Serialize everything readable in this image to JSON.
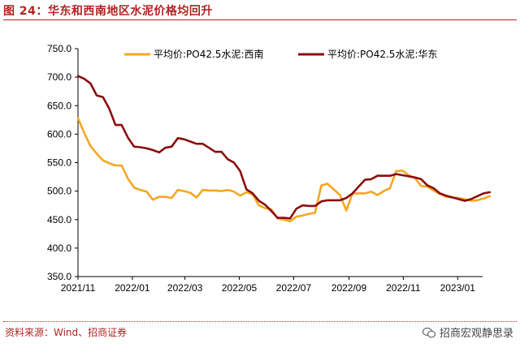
{
  "figure": {
    "title": "图 24：华东和西南地区水泥价格均回升",
    "source": "资料来源：Wind、招商证券",
    "watermark": "招商宏观静思录",
    "watermark_icon": "wechat-icon"
  },
  "chart_data": {
    "type": "line",
    "title": "",
    "xlabel": "",
    "ylabel": "",
    "x_ticks": [
      "2021/11",
      "2022/01",
      "2022/03",
      "2022/05",
      "2022/07",
      "2022/09",
      "2022/11",
      "2023/01"
    ],
    "y_ticks": [
      "350.0",
      "400.0",
      "450.0",
      "500.0",
      "550.0",
      "600.0",
      "650.0",
      "700.0",
      "750.0"
    ],
    "ylim": [
      350,
      750
    ],
    "x_start": "2021-11-01",
    "x_step_days": 7,
    "legend_position": "top",
    "grid": false,
    "series": [
      {
        "name": "平均价:PO42.5水泥:西南",
        "color": "#f5a623",
        "values": [
          628,
          602,
          579,
          566,
          554,
          549,
          545,
          545,
          522,
          506,
          502,
          499,
          485,
          490,
          490,
          488,
          502,
          500,
          497,
          489,
          502,
          501,
          501,
          500,
          502,
          499,
          492,
          498,
          494,
          475,
          470,
          468,
          452,
          450,
          447,
          455,
          457,
          460,
          462,
          510,
          513,
          503,
          493,
          466,
          496,
          496,
          496,
          499,
          493,
          500,
          505,
          535,
          536,
          528,
          523,
          509,
          508,
          501,
          495,
          490,
          489,
          488,
          486,
          483,
          484,
          487,
          491
        ]
      },
      {
        "name": "平均价:PO42.5水泥:华东",
        "color": "#8b0d0d",
        "values": [
          702,
          697,
          689,
          668,
          665,
          645,
          616,
          616,
          594,
          578,
          577,
          575,
          572,
          568,
          576,
          578,
          593,
          591,
          587,
          583,
          583,
          576,
          569,
          569,
          556,
          550,
          535,
          503,
          496,
          483,
          476,
          465,
          453,
          453,
          452,
          469,
          475,
          474,
          474,
          482,
          484,
          484,
          484,
          488,
          496,
          508,
          520,
          521,
          527,
          527,
          527,
          530,
          528,
          526,
          524,
          521,
          510,
          505,
          496,
          492,
          489,
          486,
          483,
          486,
          491,
          496,
          498
        ]
      }
    ]
  }
}
